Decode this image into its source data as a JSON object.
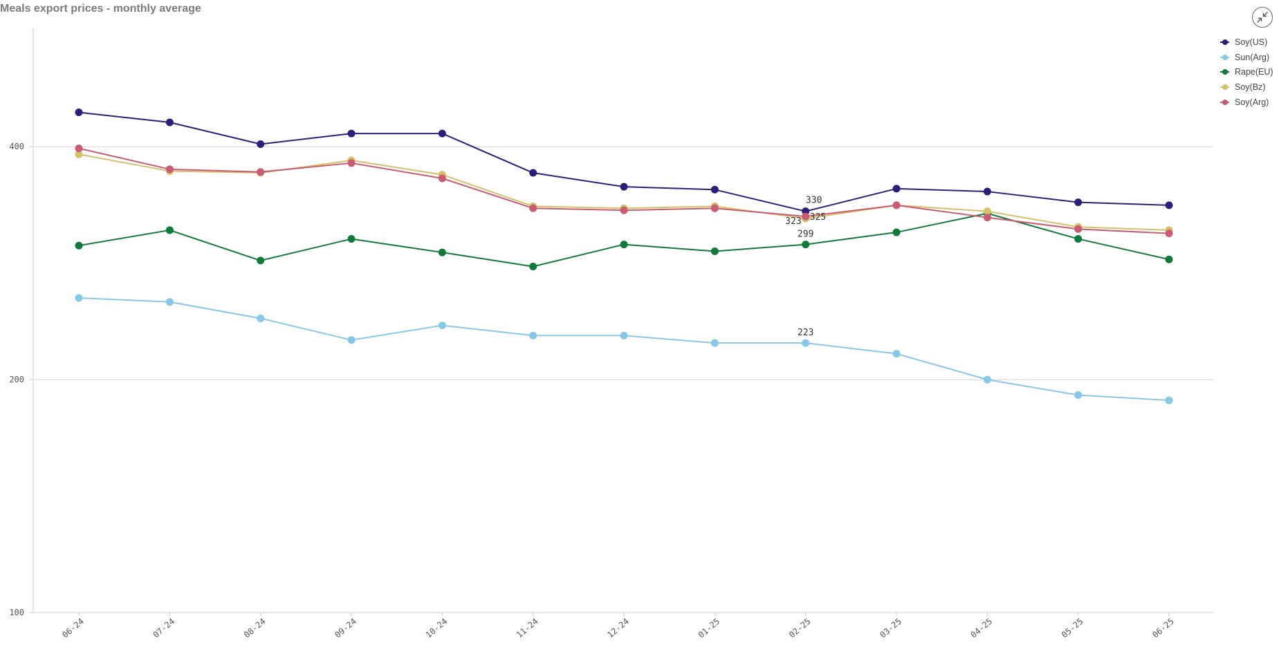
{
  "header": {
    "exit_icon": "collapse-arrows-icon"
  },
  "chart_data": {
    "type": "line",
    "title": "Meals export prices - monthly average",
    "xlabel": "",
    "ylabel": "",
    "x": [
      "06-24",
      "07-24",
      "08-24",
      "09-24",
      "10-24",
      "11-24",
      "12-24",
      "01-25",
      "02-25",
      "03-25",
      "04-25",
      "05-25",
      "06-25"
    ],
    "y_scale": "log",
    "ylim": [
      100,
      570
    ],
    "yticks": [
      100,
      200,
      400
    ],
    "grid": true,
    "legend_position": "top-right",
    "series": [
      {
        "name": "Soy(US)",
        "color": "#2b1f7a",
        "values": [
          443,
          430,
          403,
          416,
          416,
          370,
          355,
          352,
          330,
          353,
          350,
          339,
          336
        ]
      },
      {
        "name": "Sun(Arg)",
        "color": "#87c7e8",
        "values": [
          255,
          252,
          240,
          225,
          235,
          228,
          228,
          223,
          223,
          216,
          200,
          191,
          188
        ]
      },
      {
        "name": "Rape(EU)",
        "color": "#117a38",
        "values": [
          298,
          312,
          285,
          304,
          292,
          280,
          299,
          293,
          299,
          310,
          328,
          304,
          286
        ]
      },
      {
        "name": "Soy(Bz)",
        "color": "#d6c06a",
        "values": [
          391,
          372,
          370,
          384,
          368,
          335,
          333,
          335,
          323,
          336,
          330,
          315,
          312
        ]
      },
      {
        "name": "Soy(Arg)",
        "color": "#c95c72",
        "values": [
          398,
          374,
          371,
          381,
          364,
          333,
          331,
          333,
          325,
          336,
          324,
          313,
          309
        ]
      }
    ],
    "annotations": [
      {
        "series": "Soy(US)",
        "x": "02-25",
        "text": "330"
      },
      {
        "series": "Soy(Bz)",
        "x": "02-25",
        "text": "323"
      },
      {
        "series": "Soy(Arg)",
        "x": "02-25",
        "text": "325"
      },
      {
        "series": "Rape(EU)",
        "x": "02-25",
        "text": "299"
      },
      {
        "series": "Sun(Arg)",
        "x": "02-25",
        "text": "223"
      }
    ]
  }
}
